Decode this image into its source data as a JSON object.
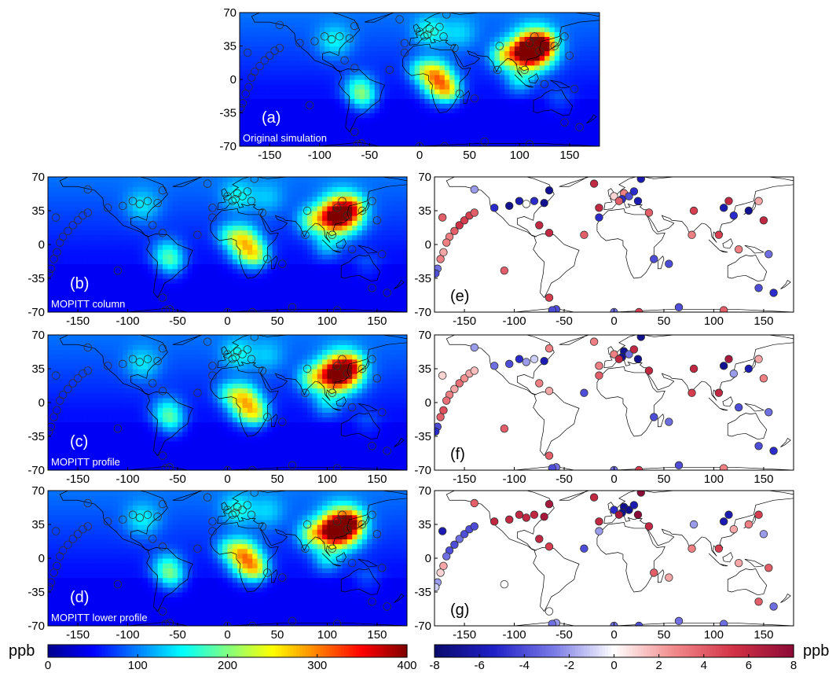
{
  "figure": {
    "unit_label": "ppb",
    "seq_cmap": [
      "#00008f",
      "#0000ff",
      "#0080ff",
      "#00ffff",
      "#80ff80",
      "#ffff00",
      "#ff8000",
      "#ff0000",
      "#800000"
    ],
    "div_cmap": [
      "#0a0a6e",
      "#2020c8",
      "#7a7ae6",
      "#ffffff",
      "#f28a8a",
      "#d23246",
      "#8c0a37"
    ],
    "land_color": "#ffffff",
    "coast_color": "#000000"
  },
  "chart_data": [
    {
      "id": "a",
      "type": "map",
      "label": "(a)",
      "title": "Original simulation",
      "fill": "field",
      "field_scale": 1.0,
      "xticks": [
        "-150",
        "-100",
        "-50",
        "0",
        "50",
        "100",
        "150"
      ],
      "yticks": [
        "70",
        "35",
        "0",
        "-35",
        "-70"
      ],
      "xlim": [
        -180,
        180
      ],
      "ylim": [
        -70,
        70
      ]
    },
    {
      "id": "b",
      "type": "map",
      "label": "(b)",
      "title": "MOPITT column",
      "fill": "field",
      "field_scale": 0.86,
      "xticks": [
        "-150",
        "-100",
        "-50",
        "0",
        "50",
        "100",
        "150"
      ],
      "yticks": [
        "70",
        "35",
        "0",
        "-35",
        "-70"
      ],
      "xlim": [
        -180,
        180
      ],
      "ylim": [
        -70,
        70
      ]
    },
    {
      "id": "c",
      "type": "map",
      "label": "(c)",
      "title": "MOPITT profile",
      "fill": "field",
      "field_scale": 0.88,
      "xticks": [
        "-150",
        "-100",
        "-50",
        "0",
        "50",
        "100",
        "150"
      ],
      "yticks": [
        "70",
        "35",
        "0",
        "-35",
        "-70"
      ],
      "xlim": [
        -180,
        180
      ],
      "ylim": [
        -70,
        70
      ]
    },
    {
      "id": "d",
      "type": "map",
      "label": "(d)",
      "title": "MOPITT lower profile",
      "fill": "field",
      "field_scale": 0.97,
      "xticks": [
        "-150",
        "-100",
        "-50",
        "0",
        "50",
        "100",
        "150"
      ],
      "yticks": [
        "70",
        "35",
        "0",
        "-35",
        "-70"
      ],
      "xlim": [
        -180,
        180
      ],
      "ylim": [
        -70,
        70
      ]
    },
    {
      "id": "e",
      "type": "map",
      "label": "(e)",
      "title": "",
      "fill": "white",
      "diff_profile": 1,
      "xticks": [
        "-150",
        "-100",
        "-50",
        "0",
        "50",
        "100",
        "150"
      ],
      "yticks": [
        "70",
        "35",
        "0",
        "-35",
        "-70"
      ],
      "xlim": [
        -180,
        180
      ],
      "ylim": [
        -70,
        70
      ]
    },
    {
      "id": "f",
      "type": "map",
      "label": "(f)",
      "title": "",
      "fill": "white",
      "diff_profile": 2,
      "xticks": [
        "-150",
        "-100",
        "-50",
        "0",
        "50",
        "100",
        "150"
      ],
      "yticks": [
        "70",
        "35",
        "0",
        "-35",
        "-70"
      ],
      "xlim": [
        -180,
        180
      ],
      "ylim": [
        -70,
        70
      ]
    },
    {
      "id": "g",
      "type": "map",
      "label": "(g)",
      "title": "",
      "fill": "white",
      "diff_profile": 3,
      "xticks": [
        "-150",
        "-100",
        "-50",
        "0",
        "50",
        "100",
        "150"
      ],
      "yticks": [
        "70",
        "35",
        "0",
        "-35",
        "-70"
      ],
      "xlim": [
        -180,
        180
      ],
      "ylim": [
        -70,
        70
      ]
    },
    {
      "id": "cb_seq",
      "type": "colorbar",
      "ticks": [
        "0",
        "100",
        "200",
        "300",
        "400"
      ],
      "range": [
        0,
        400
      ],
      "unit": "ppb"
    },
    {
      "id": "cb_div",
      "type": "colorbar",
      "ticks": [
        "-8",
        "-6",
        "-4",
        "-2",
        "0",
        "2",
        "4",
        "6",
        "8"
      ],
      "range": [
        -8,
        8
      ],
      "unit": "ppb"
    }
  ],
  "stations": [
    {
      "lon": -155,
      "lat": 20,
      "d": [
        5.5,
        3.5,
        -3
      ]
    },
    {
      "lon": -150,
      "lat": 25,
      "d": [
        5,
        2.5,
        -4
      ]
    },
    {
      "lon": -145,
      "lat": 30,
      "d": [
        5,
        2,
        -4
      ]
    },
    {
      "lon": -140,
      "lat": 33,
      "d": [
        4,
        1.5,
        -4
      ]
    },
    {
      "lon": -160,
      "lat": 14,
      "d": [
        4,
        2,
        -4
      ]
    },
    {
      "lon": -165,
      "lat": 8,
      "d": [
        3,
        3,
        -4
      ]
    },
    {
      "lon": -168,
      "lat": 2,
      "d": [
        3,
        3.5,
        -3
      ]
    },
    {
      "lon": -171,
      "lat": -8,
      "d": [
        2,
        4.5,
        2
      ]
    },
    {
      "lon": -174,
      "lat": -15,
      "d": [
        3,
        4,
        1
      ]
    },
    {
      "lon": -177,
      "lat": -25,
      "d": [
        -3,
        -4,
        -2
      ]
    },
    {
      "lon": -179,
      "lat": -30,
      "d": [
        -4,
        -5,
        -1
      ]
    },
    {
      "lon": -172,
      "lat": 28,
      "d": [
        4,
        1,
        -6
      ]
    },
    {
      "lon": -140,
      "lat": 57,
      "d": [
        -2,
        -2,
        4
      ]
    },
    {
      "lon": -120,
      "lat": 38,
      "d": [
        -5,
        -3,
        6
      ]
    },
    {
      "lon": -105,
      "lat": 40,
      "d": [
        -7,
        -4,
        6
      ]
    },
    {
      "lon": -95,
      "lat": 45,
      "d": [
        -6,
        -5,
        6
      ]
    },
    {
      "lon": -88,
      "lat": 42,
      "d": [
        0,
        -2,
        6
      ]
    },
    {
      "lon": -80,
      "lat": 45,
      "d": [
        -5,
        -1,
        6
      ]
    },
    {
      "lon": -70,
      "lat": 43,
      "d": [
        -7,
        -6,
        7
      ]
    },
    {
      "lon": -65,
      "lat": 56,
      "d": [
        -7,
        3,
        7
      ]
    },
    {
      "lon": -75,
      "lat": 20,
      "d": [
        6,
        3,
        6
      ]
    },
    {
      "lon": -65,
      "lat": 12,
      "d": [
        6,
        2,
        5
      ]
    },
    {
      "lon": -110,
      "lat": -27,
      "d": [
        4,
        4,
        0
      ]
    },
    {
      "lon": -65,
      "lat": -55,
      "d": [
        5,
        4,
        0
      ]
    },
    {
      "lon": -58,
      "lat": -67,
      "d": [
        -4,
        -3,
        -2
      ]
    },
    {
      "lon": -20,
      "lat": 63,
      "d": [
        6,
        3,
        6
      ]
    },
    {
      "lon": -15,
      "lat": 38,
      "d": [
        6,
        3,
        6
      ]
    },
    {
      "lon": 0,
      "lat": 50,
      "d": [
        1,
        3,
        -5
      ]
    },
    {
      "lon": 10,
      "lat": 53,
      "d": [
        3,
        -7,
        -7
      ]
    },
    {
      "lon": 8,
      "lat": 47,
      "d": [
        -5,
        -7,
        -7
      ]
    },
    {
      "lon": 15,
      "lat": 50,
      "d": [
        -4,
        -3,
        -7
      ]
    },
    {
      "lon": 20,
      "lat": 55,
      "d": [
        -5,
        6,
        -6
      ]
    },
    {
      "lon": 24,
      "lat": 45,
      "d": [
        -6,
        -7,
        8
      ]
    },
    {
      "lon": 27,
      "lat": 68,
      "d": [
        -6,
        -7,
        8
      ]
    },
    {
      "lon": 5,
      "lat": 45,
      "d": [
        4,
        6,
        7
      ]
    },
    {
      "lon": -15,
      "lat": 28,
      "d": [
        -5,
        4,
        -2
      ]
    },
    {
      "lon": -30,
      "lat": 10,
      "d": [
        4,
        -4,
        -4
      ]
    },
    {
      "lon": 35,
      "lat": 33,
      "d": [
        4,
        6,
        6
      ]
    },
    {
      "lon": 40,
      "lat": -15,
      "d": [
        -4,
        -4,
        4
      ]
    },
    {
      "lon": 55,
      "lat": -20,
      "d": [
        -4,
        -3,
        2
      ]
    },
    {
      "lon": 80,
      "lat": 35,
      "d": [
        5,
        6,
        -2
      ]
    },
    {
      "lon": 78,
      "lat": 10,
      "d": [
        3,
        5,
        3
      ]
    },
    {
      "lon": 105,
      "lat": 10,
      "d": [
        5,
        6,
        5
      ]
    },
    {
      "lon": 110,
      "lat": 38,
      "d": [
        -6,
        -7,
        -6
      ]
    },
    {
      "lon": 115,
      "lat": 45,
      "d": [
        6,
        7,
        -6
      ]
    },
    {
      "lon": 120,
      "lat": 30,
      "d": [
        -5,
        -2,
        2
      ]
    },
    {
      "lon": 135,
      "lat": 35,
      "d": [
        -7,
        -6,
        3
      ]
    },
    {
      "lon": 145,
      "lat": 45,
      "d": [
        2,
        2,
        5
      ]
    },
    {
      "lon": 150,
      "lat": 25,
      "d": [
        6,
        3,
        -2
      ]
    },
    {
      "lon": 125,
      "lat": -5,
      "d": [
        3,
        -4,
        2
      ]
    },
    {
      "lon": 145,
      "lat": -45,
      "d": [
        -4,
        -4,
        4
      ]
    },
    {
      "lon": 160,
      "lat": -50,
      "d": [
        -5,
        -5,
        -3
      ]
    },
    {
      "lon": 110,
      "lat": -68,
      "d": [
        4,
        3,
        -3
      ]
    },
    {
      "lon": 65,
      "lat": -65,
      "d": [
        -4,
        -4,
        -3
      ]
    },
    {
      "lon": 25,
      "lat": -70,
      "d": [
        5,
        5,
        -4
      ]
    },
    {
      "lon": 0,
      "lat": -70,
      "d": [
        -3,
        -3,
        -3
      ]
    },
    {
      "lon": -62,
      "lat": -68,
      "d": [
        -4,
        -4,
        -3
      ]
    },
    {
      "lon": 155,
      "lat": -10,
      "d": [
        -3,
        -3,
        4
      ]
    }
  ]
}
